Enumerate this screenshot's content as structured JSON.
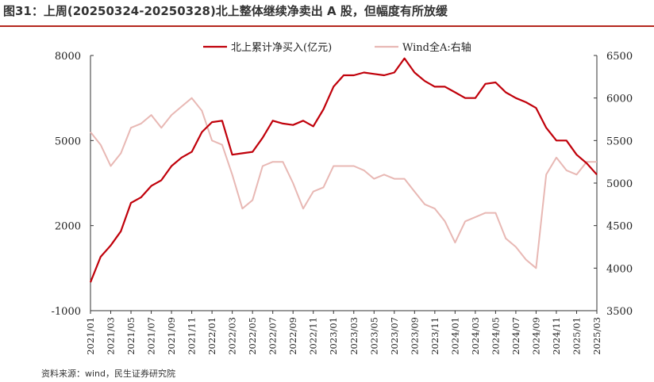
{
  "figure": {
    "title": "图31：上周(20250324-20250328)北上整体继续净卖出 A 股，但幅度有所放缓",
    "source": "资料来源：wind，民生证券研究院"
  },
  "colors": {
    "title_rule": "#b4261d",
    "northbound_line": "#c0000a",
    "wind_line": "#e8b8b4"
  },
  "chart_data": {
    "type": "line",
    "x_tick_labels": [
      "2021/01",
      "2021/03",
      "2021/05",
      "2021/07",
      "2021/09",
      "2021/11",
      "2022/01",
      "2022/03",
      "2022/05",
      "2022/07",
      "2022/09",
      "2022/11",
      "2023/01",
      "2023/03",
      "2023/05",
      "2023/07",
      "2023/09",
      "2023/11",
      "2024/01",
      "2024/03",
      "2024/05",
      "2024/07",
      "2024/09",
      "2024/11",
      "2025/01",
      "2025/03"
    ],
    "xlim": [
      "2021/01",
      "2025/03"
    ],
    "y_left": {
      "ylim": [
        -1000,
        8000
      ],
      "ticks": [
        -1000,
        2000,
        5000,
        8000
      ]
    },
    "y_right": {
      "ylim": [
        3500,
        6500
      ],
      "ticks": [
        3500,
        4000,
        4500,
        5000,
        5500,
        6000,
        6500
      ]
    },
    "series": [
      {
        "name": "北上累计净买入(亿元)",
        "axis": "left",
        "color": "#c0000a",
        "x": [
          "2021/01",
          "2021/02",
          "2021/03",
          "2021/04",
          "2021/05",
          "2021/06",
          "2021/07",
          "2021/08",
          "2021/09",
          "2021/10",
          "2021/11",
          "2021/12",
          "2022/01",
          "2022/02",
          "2022/03",
          "2022/04",
          "2022/05",
          "2022/06",
          "2022/07",
          "2022/08",
          "2022/09",
          "2022/10",
          "2022/11",
          "2022/12",
          "2023/01",
          "2023/02",
          "2023/03",
          "2023/04",
          "2023/05",
          "2023/06",
          "2023/07",
          "2023/08",
          "2023/09",
          "2023/10",
          "2023/11",
          "2023/12",
          "2024/01",
          "2024/02",
          "2024/03",
          "2024/04",
          "2024/05",
          "2024/06",
          "2024/07",
          "2024/08",
          "2024/09",
          "2024/10",
          "2024/11",
          "2024/12",
          "2025/01",
          "2025/02",
          "2025/03"
        ],
        "values": [
          0,
          900,
          1300,
          1800,
          2800,
          3000,
          3400,
          3600,
          4100,
          4400,
          4600,
          5300,
          5650,
          5700,
          4500,
          4550,
          4600,
          5100,
          5700,
          5600,
          5550,
          5700,
          5500,
          6100,
          6900,
          7300,
          7300,
          7400,
          7350,
          7300,
          7400,
          7900,
          7400,
          7100,
          6900,
          6900,
          6700,
          6500,
          6500,
          7000,
          7050,
          6700,
          6500,
          6350,
          6150,
          5450,
          5000,
          5000,
          4500,
          4200,
          3800
        ]
      },
      {
        "name": "Wind全A:右轴",
        "axis": "right",
        "color": "#e8b8b4",
        "x": [
          "2021/01",
          "2021/02",
          "2021/03",
          "2021/04",
          "2021/05",
          "2021/06",
          "2021/07",
          "2021/08",
          "2021/09",
          "2021/10",
          "2021/11",
          "2021/12",
          "2022/01",
          "2022/02",
          "2022/03",
          "2022/04",
          "2022/05",
          "2022/06",
          "2022/07",
          "2022/08",
          "2022/09",
          "2022/10",
          "2022/11",
          "2022/12",
          "2023/01",
          "2023/02",
          "2023/03",
          "2023/04",
          "2023/05",
          "2023/06",
          "2023/07",
          "2023/08",
          "2023/09",
          "2023/10",
          "2023/11",
          "2023/12",
          "2024/01",
          "2024/02",
          "2024/03",
          "2024/04",
          "2024/05",
          "2024/06",
          "2024/07",
          "2024/08",
          "2024/09",
          "2024/10",
          "2024/11",
          "2024/12",
          "2025/01",
          "2025/02",
          "2025/03"
        ],
        "values": [
          5600,
          5450,
          5200,
          5350,
          5650,
          5700,
          5800,
          5650,
          5800,
          5900,
          6000,
          5850,
          5500,
          5450,
          5100,
          4700,
          4800,
          5200,
          5250,
          5250,
          5000,
          4700,
          4900,
          4950,
          5200,
          5200,
          5200,
          5150,
          5050,
          5100,
          5050,
          5050,
          4900,
          4750,
          4700,
          4550,
          4300,
          4550,
          4600,
          4650,
          4650,
          4350,
          4250,
          4100,
          4000,
          5100,
          5300,
          5150,
          5100,
          5250,
          5250
        ]
      }
    ]
  }
}
